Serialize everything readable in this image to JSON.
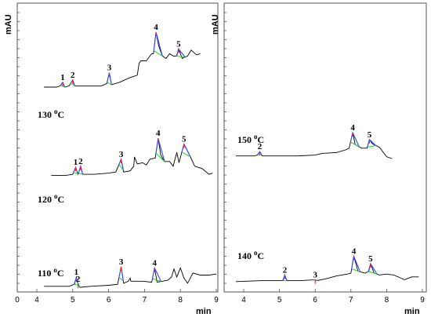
{
  "chart_data": [
    {
      "type": "line",
      "panel": "left",
      "y_unit": "mAU",
      "x_unit": "min",
      "xlim": [
        0,
        9
      ],
      "x_ticks": [
        "0",
        "4",
        "5",
        "6",
        "7",
        "8",
        "9"
      ],
      "grid": false,
      "series": [
        {
          "name": "130 °C",
          "label": "130 ",
          "label_sup": "o",
          "label_unit": "C",
          "points": [
            [
              4.2,
              0.52
            ],
            [
              4.55,
              0.52
            ],
            [
              4.65,
              0.53
            ],
            [
              4.72,
              0.56
            ],
            [
              4.78,
              0.52
            ],
            [
              4.9,
              0.53
            ],
            [
              5.0,
              0.58
            ],
            [
              5.05,
              0.53
            ],
            [
              5.4,
              0.53
            ],
            [
              5.8,
              0.53
            ],
            [
              5.95,
              0.55
            ],
            [
              6.02,
              0.64
            ],
            [
              6.08,
              0.54
            ],
            [
              6.3,
              0.56
            ],
            [
              6.6,
              0.6
            ],
            [
              6.8,
              0.62
            ],
            [
              6.85,
              0.72
            ],
            [
              6.9,
              0.74
            ],
            [
              7.05,
              0.74
            ],
            [
              7.15,
              0.78
            ],
            [
              7.2,
              0.8
            ],
            [
              7.25,
              0.8
            ],
            [
              7.32,
              0.98
            ],
            [
              7.4,
              0.86
            ],
            [
              7.5,
              0.78
            ],
            [
              7.6,
              0.76
            ],
            [
              7.7,
              0.8
            ],
            [
              7.8,
              0.78
            ],
            [
              7.9,
              0.78
            ],
            [
              7.95,
              0.84
            ],
            [
              8.05,
              0.76
            ],
            [
              8.2,
              0.78
            ],
            [
              8.3,
              0.83
            ],
            [
              8.45,
              0.79
            ],
            [
              8.55,
              0.8
            ]
          ],
          "peaks": [
            {
              "id": "1",
              "t": 4.72
            },
            {
              "id": "2",
              "t": 5.0
            },
            {
              "id": "3",
              "t": 6.02
            },
            {
              "id": "4",
              "t": 7.32
            },
            {
              "id": "5",
              "t": 7.95
            }
          ]
        },
        {
          "name": "120 °C",
          "label": "120 ",
          "label_sup": "o",
          "label_unit": "C",
          "points": [
            [
              4.4,
              0.3
            ],
            [
              4.8,
              0.3
            ],
            [
              5.0,
              0.31
            ],
            [
              5.08,
              0.37
            ],
            [
              5.15,
              0.31
            ],
            [
              5.22,
              0.38
            ],
            [
              5.28,
              0.31
            ],
            [
              5.6,
              0.31
            ],
            [
              6.0,
              0.32
            ],
            [
              6.2,
              0.33
            ],
            [
              6.35,
              0.44
            ],
            [
              6.42,
              0.33
            ],
            [
              6.6,
              0.34
            ],
            [
              6.7,
              0.38
            ],
            [
              6.72,
              0.46
            ],
            [
              6.8,
              0.4
            ],
            [
              6.95,
              0.41
            ],
            [
              7.05,
              0.39
            ],
            [
              7.15,
              0.44
            ],
            [
              7.3,
              0.45
            ],
            [
              7.38,
              0.62
            ],
            [
              7.45,
              0.48
            ],
            [
              7.55,
              0.42
            ],
            [
              7.7,
              0.42
            ],
            [
              7.8,
              0.38
            ],
            [
              7.9,
              0.5
            ],
            [
              7.96,
              0.41
            ],
            [
              8.1,
              0.57
            ],
            [
              8.25,
              0.48
            ],
            [
              8.4,
              0.38
            ],
            [
              8.6,
              0.36
            ],
            [
              8.8,
              0.31
            ],
            [
              8.9,
              0.32
            ]
          ],
          "peaks": [
            {
              "id": "1",
              "t": 5.08
            },
            {
              "id": "2",
              "t": 5.22
            },
            {
              "id": "3",
              "t": 6.35
            },
            {
              "id": "4",
              "t": 7.38
            },
            {
              "id": "5",
              "t": 8.1
            }
          ]
        },
        {
          "name": "110 °C",
          "label": "110 ",
          "label_sup": "o",
          "label_unit": "C",
          "points": [
            [
              4.2,
              0.04
            ],
            [
              4.6,
              0.04
            ],
            [
              4.9,
              0.04
            ],
            [
              5.05,
              0.06
            ],
            [
              5.1,
              0.13
            ],
            [
              5.15,
              0.06
            ],
            [
              5.2,
              0.03
            ],
            [
              5.5,
              0.04
            ],
            [
              6.0,
              0.05
            ],
            [
              6.25,
              0.06
            ],
            [
              6.35,
              0.23
            ],
            [
              6.42,
              0.07
            ],
            [
              6.55,
              0.09
            ],
            [
              6.6,
              0.12
            ],
            [
              6.62,
              0.09
            ],
            [
              6.8,
              0.09
            ],
            [
              6.95,
              0.09
            ],
            [
              7.2,
              0.08
            ],
            [
              7.28,
              0.22
            ],
            [
              7.35,
              0.08
            ],
            [
              7.5,
              0.09
            ],
            [
              7.65,
              0.1
            ],
            [
              7.75,
              0.13
            ],
            [
              7.82,
              0.21
            ],
            [
              7.9,
              0.13
            ],
            [
              8.0,
              0.22
            ],
            [
              8.1,
              0.12
            ],
            [
              8.2,
              0.07
            ],
            [
              8.35,
              0.17
            ],
            [
              8.55,
              0.15
            ],
            [
              8.8,
              0.15
            ],
            [
              9.0,
              0.16
            ]
          ],
          "peaks": [
            {
              "id": "1",
              "t": 5.1
            },
            {
              "id": "2",
              "t": 5.15
            },
            {
              "id": "3",
              "t": 6.35
            },
            {
              "id": "4",
              "t": 7.28
            }
          ]
        }
      ]
    },
    {
      "type": "line",
      "panel": "right",
      "y_unit": "mAU",
      "x_unit": "min",
      "xlim": [
        3.5,
        9
      ],
      "x_ticks": [
        "4",
        "5",
        "6",
        "7",
        "8",
        "9"
      ],
      "grid": false,
      "series": [
        {
          "name": "150 °C",
          "label": "150 ",
          "label_sup": "o",
          "label_unit": "C",
          "points": [
            [
              3.8,
              0.33
            ],
            [
              4.3,
              0.33
            ],
            [
              4.38,
              0.34
            ],
            [
              4.45,
              0.38
            ],
            [
              4.52,
              0.33
            ],
            [
              5.0,
              0.33
            ],
            [
              5.5,
              0.33
            ],
            [
              6.0,
              0.34
            ],
            [
              6.2,
              0.36
            ],
            [
              6.6,
              0.37
            ],
            [
              6.85,
              0.4
            ],
            [
              6.95,
              0.42
            ],
            [
              7.05,
              0.6
            ],
            [
              7.12,
              0.46
            ],
            [
              7.3,
              0.42
            ],
            [
              7.45,
              0.42
            ],
            [
              7.52,
              0.52
            ],
            [
              7.6,
              0.47
            ],
            [
              7.8,
              0.43
            ],
            [
              8.0,
              0.32
            ],
            [
              8.15,
              0.3
            ]
          ],
          "peaks": [
            {
              "id": "2",
              "t": 4.45
            },
            {
              "id": "4",
              "t": 7.05
            },
            {
              "id": "5",
              "t": 7.52
            }
          ]
        },
        {
          "name": "140 °C",
          "label": "140 ",
          "label_sup": "o",
          "label_unit": "C",
          "points": [
            [
              3.8,
              0.01
            ],
            [
              4.5,
              0.02
            ],
            [
              5.1,
              0.02
            ],
            [
              5.15,
              0.08
            ],
            [
              5.2,
              0.02
            ],
            [
              5.6,
              0.02
            ],
            [
              6.0,
              0.03
            ],
            [
              6.05,
              0.02
            ],
            [
              6.3,
              0.04
            ],
            [
              6.6,
              0.07
            ],
            [
              6.9,
              0.09
            ],
            [
              7.0,
              0.1
            ],
            [
              7.08,
              0.28
            ],
            [
              7.2,
              0.12
            ],
            [
              7.4,
              0.1
            ],
            [
              7.5,
              0.12
            ],
            [
              7.55,
              0.2
            ],
            [
              7.65,
              0.1
            ],
            [
              7.8,
              0.08
            ],
            [
              8.0,
              0.09
            ],
            [
              8.2,
              0.08
            ],
            [
              8.5,
              0.03
            ],
            [
              8.7,
              0.06
            ],
            [
              8.9,
              0.06
            ]
          ],
          "peaks": [
            {
              "id": "2",
              "t": 5.15
            },
            {
              "id": "3",
              "t": 6.0
            },
            {
              "id": "4",
              "t": 7.08
            },
            {
              "id": "5",
              "t": 7.55
            }
          ]
        }
      ]
    }
  ]
}
